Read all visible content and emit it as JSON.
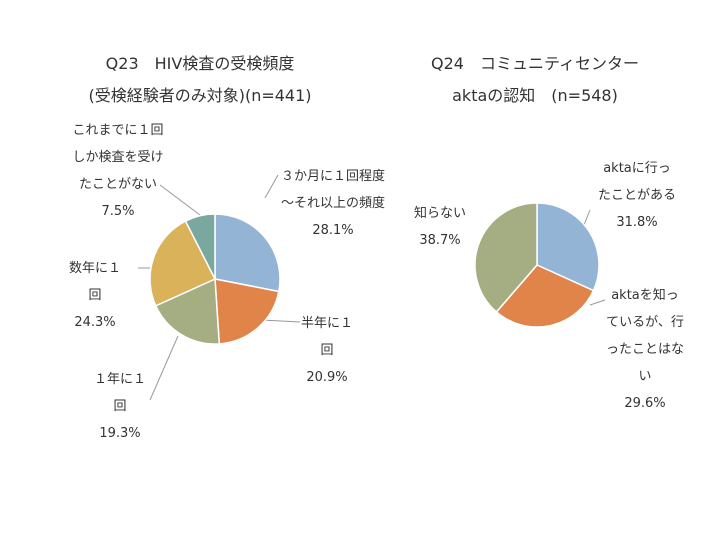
{
  "chart_data": [
    {
      "type": "pie",
      "title": "Q23　HIV検査の受検頻度",
      "subtitle": "(受検経験者のみ対象)(n=441)",
      "categories": [
        "３か月に１回程度～それ以上の頻度",
        "半年に１回",
        "１年に１回",
        "数年に１回",
        "これまでに１回しか検査を受けたことがない"
      ],
      "values": [
        28.1,
        20.9,
        19.3,
        24.3,
        7.5
      ],
      "value_labels": [
        "28.1%",
        "20.9%",
        "19.3%",
        "24.3%",
        "7.5%"
      ],
      "colors": [
        "#94b4d6",
        "#e0844a",
        "#a5ad82",
        "#d9b25a",
        "#7aa89f"
      ]
    },
    {
      "type": "pie",
      "title": "Q24　コミュニティセンター",
      "subtitle": "aktaの認知　(n=548)",
      "categories": [
        "aktaに行ったことがある",
        "aktaを知っているが、行ったことはない",
        "知らない"
      ],
      "values": [
        31.8,
        29.6,
        38.7
      ],
      "value_labels": [
        "31.8%",
        "29.6%",
        "38.7%"
      ],
      "colors": [
        "#94b4d6",
        "#e0844a",
        "#a5ad82"
      ]
    }
  ]
}
